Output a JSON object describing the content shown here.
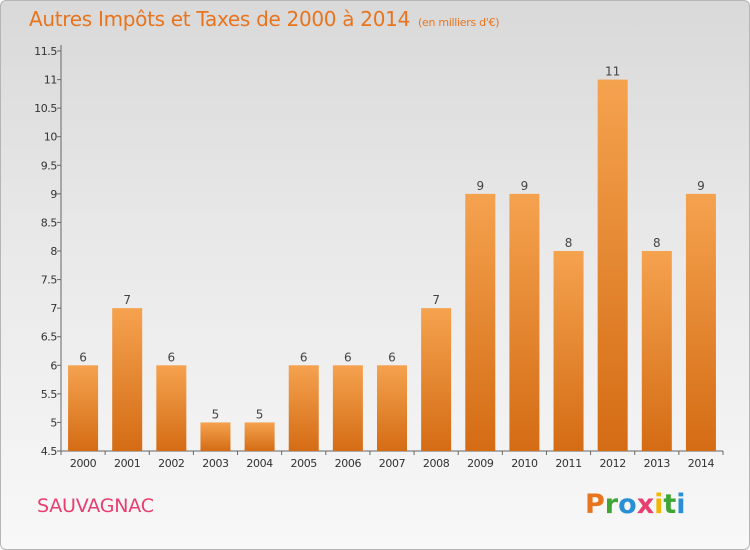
{
  "header": {
    "title": "Autres Impôts et Taxes de 2000 à 2014",
    "unit": "(en milliers d'€)"
  },
  "footer": {
    "commune": "SAUVAGNAC",
    "logo_text": "Proxiti",
    "logo_colors": [
      "#e8741e",
      "#3fa535",
      "#2a8fd4",
      "#e83e6f",
      "#f2b705",
      "#3fa535",
      "#2a8fd4"
    ]
  },
  "colors": {
    "bar_top": "#f5a24f",
    "bar_bottom": "#d46c14",
    "title": "#e8741e",
    "commune": "#e83e6f"
  },
  "chart_data": {
    "type": "bar",
    "title": "Autres Impôts et Taxes de 2000 à 2014",
    "subtitle": "(en milliers d'€)",
    "xlabel": "",
    "ylabel": "",
    "categories": [
      "2000",
      "2001",
      "2002",
      "2003",
      "2004",
      "2005",
      "2006",
      "2007",
      "2008",
      "2009",
      "2010",
      "2011",
      "2012",
      "2013",
      "2014"
    ],
    "values": [
      6,
      7,
      6,
      5,
      5,
      6,
      6,
      6,
      7,
      9,
      9,
      8,
      11,
      8,
      9
    ],
    "data_labels": [
      "6",
      "7",
      "6",
      "5",
      "5",
      "6",
      "6",
      "6",
      "7",
      "9",
      "9",
      "8",
      "11",
      "8",
      "9"
    ],
    "ylim": [
      4.5,
      11.5
    ],
    "yticks": [
      "4.5",
      "5",
      "5.5",
      "6",
      "6.5",
      "7",
      "7.5",
      "8",
      "8.5",
      "9",
      "9.5",
      "10",
      "10.5",
      "11",
      "11.5"
    ],
    "grid": false,
    "legend": "none"
  }
}
